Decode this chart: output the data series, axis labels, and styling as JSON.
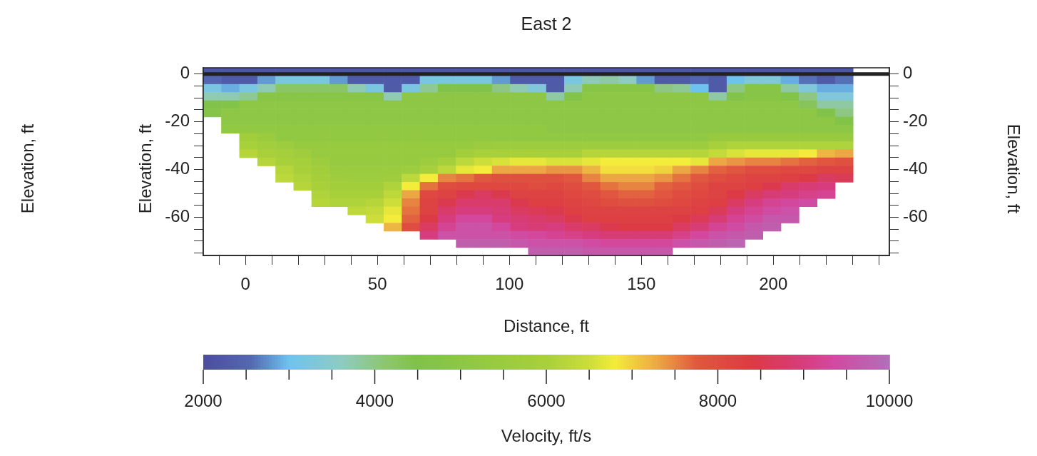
{
  "chart_data": {
    "type": "heatmap",
    "title": "East 2",
    "xlabel": "Distance, ft",
    "ylabel": "Elevation, ft",
    "y2label": "Elevation, ft",
    "clabel": "Velocity, ft/s",
    "annotations": [
      "Elevation, ft"
    ],
    "x": [
      -12.6,
      -5.8,
      1.1,
      7.9,
      14.8,
      21.6,
      28.4,
      35.3,
      42.1,
      49.0,
      55.8,
      62.6,
      69.5,
      76.3,
      83.2,
      90.0,
      96.8,
      103.7,
      110.5,
      117.4,
      124.2,
      131.0,
      137.9,
      144.7,
      151.6,
      158.4,
      165.2,
      172.1,
      178.9,
      185.8,
      192.6,
      199.4,
      206.3,
      213.1,
      220.0,
      226.8
    ],
    "cells": [
      [
        2200,
        2200,
        2200,
        2200,
        2200,
        2200,
        2200,
        2200,
        2200,
        2200,
        2200,
        2200,
        2200,
        2200,
        2200,
        2200,
        2200,
        2200,
        2200,
        2200,
        2200,
        2200,
        2200,
        2200,
        2200,
        2200,
        2200,
        2200,
        2200,
        2200,
        2200,
        2200,
        2200,
        2200,
        2200,
        2200
      ],
      [
        2500,
        2300,
        2300,
        2800,
        3200,
        3200,
        3200,
        2800,
        2300,
        2300,
        2300,
        2300,
        3200,
        3200,
        3200,
        3200,
        2800,
        2300,
        2300,
        2300,
        3200,
        3700,
        3800,
        3600,
        2800,
        2300,
        2300,
        2500,
        2300,
        3000,
        3300,
        3300,
        2900,
        2600,
        2300,
        2600
      ],
      [
        3200,
        2900,
        3200,
        3700,
        4200,
        4200,
        4200,
        4200,
        3700,
        3200,
        2300,
        3200,
        3900,
        4500,
        4500,
        4500,
        4000,
        3700,
        3300,
        2300,
        3700,
        4800,
        4800,
        4800,
        4800,
        4000,
        3900,
        3000,
        2300,
        4000,
        4800,
        4800,
        3800,
        3300,
        2900,
        2900
      ],
      [
        3700,
        3700,
        3900,
        4800,
        4800,
        4800,
        4800,
        4800,
        4800,
        4800,
        3700,
        5000,
        5000,
        5000,
        5000,
        5000,
        5000,
        5000,
        5000,
        3800,
        4600,
        5000,
        5000,
        5000,
        5000,
        5000,
        5000,
        5000,
        3800,
        4600,
        4800,
        4800,
        4600,
        4000,
        3300,
        3300
      ],
      [
        4500,
        4600,
        5000,
        5000,
        5000,
        5000,
        5000,
        5000,
        5000,
        5000,
        5000,
        5000,
        5000,
        5000,
        5000,
        5000,
        5000,
        5000,
        5000,
        5000,
        5000,
        5000,
        5000,
        5000,
        5000,
        5000,
        5000,
        5000,
        5000,
        5000,
        5000,
        5000,
        5000,
        4300,
        3800,
        3800
      ],
      [
        4700,
        5000,
        5000,
        5000,
        5000,
        5000,
        5000,
        5000,
        5000,
        5000,
        5000,
        5000,
        5000,
        5000,
        5000,
        5000,
        5000,
        5000,
        5000,
        5000,
        5000,
        5000,
        5000,
        5000,
        5000,
        5000,
        5000,
        5000,
        5000,
        5000,
        5000,
        5000,
        5000,
        5000,
        4500,
        4000
      ],
      [
        null,
        5000,
        5000,
        5000,
        5000,
        5000,
        5000,
        5000,
        5000,
        5000,
        5000,
        5000,
        5000,
        5000,
        5000,
        5000,
        5000,
        5000,
        5000,
        5000,
        5000,
        5000,
        5000,
        5000,
        5000,
        5000,
        5000,
        5000,
        5000,
        5000,
        5000,
        5000,
        5000,
        5000,
        5000,
        4600
      ],
      [
        null,
        5200,
        5200,
        5200,
        5200,
        5200,
        5200,
        5200,
        5200,
        5200,
        5200,
        5200,
        5200,
        5200,
        5200,
        5200,
        5200,
        5200,
        5200,
        5000,
        5000,
        5000,
        5000,
        5000,
        5000,
        5000,
        5000,
        5000,
        5000,
        5000,
        5000,
        5000,
        5000,
        5000,
        5000,
        5000
      ],
      [
        null,
        null,
        5800,
        5500,
        5200,
        5200,
        5200,
        5200,
        5200,
        5200,
        5200,
        5200,
        5200,
        5200,
        5200,
        5200,
        5200,
        5200,
        5200,
        5200,
        5200,
        5200,
        5200,
        5200,
        5200,
        5200,
        5200,
        5200,
        5400,
        5400,
        5400,
        5400,
        5400,
        5400,
        5400,
        5400
      ],
      [
        null,
        null,
        6000,
        5800,
        5600,
        5400,
        5400,
        5400,
        5400,
        5400,
        5400,
        5400,
        5400,
        5400,
        5400,
        5500,
        5600,
        5600,
        5600,
        5600,
        5600,
        5600,
        5600,
        5600,
        5600,
        5600,
        5600,
        5600,
        6000,
        6100,
        6100,
        6100,
        6100,
        6100,
        6100,
        6100
      ],
      [
        null,
        null,
        6200,
        6000,
        5900,
        5700,
        5400,
        5400,
        5400,
        5400,
        5400,
        5400,
        5400,
        5400,
        5800,
        6000,
        6000,
        6000,
        6000,
        6000,
        6000,
        6200,
        6200,
        6200,
        6200,
        6200,
        6200,
        6200,
        6400,
        6600,
        6700,
        6700,
        6700,
        6800,
        7200,
        7300
      ],
      [
        null,
        null,
        null,
        6200,
        6000,
        5900,
        5600,
        5300,
        5300,
        5300,
        5300,
        5300,
        5600,
        5900,
        6300,
        6500,
        6600,
        6700,
        6700,
        6600,
        6600,
        6700,
        6800,
        6800,
        6800,
        6800,
        6800,
        6700,
        7300,
        7400,
        7500,
        7500,
        7600,
        7700,
        7800,
        7900
      ],
      [
        null,
        null,
        null,
        null,
        6200,
        6000,
        5800,
        5500,
        5500,
        5500,
        5500,
        5600,
        6000,
        6300,
        6700,
        6800,
        7300,
        7300,
        7300,
        7400,
        7400,
        7200,
        6900,
        6900,
        6900,
        7000,
        7300,
        7500,
        7700,
        7800,
        8000,
        8000,
        8100,
        8100,
        8200,
        8200
      ],
      [
        null,
        null,
        null,
        null,
        6300,
        6100,
        5900,
        5700,
        5600,
        5600,
        5700,
        6300,
        6800,
        7500,
        7600,
        7800,
        7900,
        7900,
        7900,
        7900,
        7800,
        7500,
        7300,
        7300,
        7300,
        7400,
        7600,
        7800,
        8000,
        8100,
        8200,
        8200,
        8300,
        8400,
        8700,
        8600
      ],
      [
        null,
        null,
        null,
        null,
        null,
        6200,
        6000,
        5800,
        5800,
        5800,
        6100,
        6800,
        7600,
        8000,
        8100,
        8100,
        8100,
        8100,
        8000,
        8100,
        8000,
        7800,
        7600,
        7500,
        7500,
        7700,
        7800,
        8000,
        8200,
        8200,
        8300,
        8500,
        8800,
        8900,
        9000,
        null
      ],
      [
        null,
        null,
        null,
        null,
        null,
        null,
        6100,
        6000,
        6000,
        6000,
        6300,
        7300,
        8100,
        8200,
        8500,
        8700,
        8500,
        8200,
        8200,
        8200,
        8100,
        8000,
        7800,
        7700,
        7700,
        7800,
        8000,
        8100,
        8200,
        8400,
        8700,
        8900,
        9000,
        9100,
        9200,
        null
      ],
      [
        null,
        null,
        null,
        null,
        null,
        null,
        6200,
        6100,
        6100,
        6200,
        6500,
        7500,
        8200,
        8500,
        8800,
        8800,
        8800,
        8500,
        8300,
        8300,
        8200,
        8100,
        8000,
        7900,
        7900,
        8000,
        8100,
        8200,
        8300,
        8700,
        9000,
        9200,
        9300,
        9400,
        null,
        null
      ],
      [
        null,
        null,
        null,
        null,
        null,
        null,
        null,
        null,
        6300,
        6400,
        6700,
        7600,
        8200,
        8800,
        9000,
        9000,
        8900,
        8700,
        8600,
        8500,
        8300,
        8200,
        8200,
        8200,
        8200,
        8200,
        8200,
        8300,
        8600,
        9000,
        9200,
        9400,
        9500,
        null,
        null,
        null
      ],
      [
        null,
        null,
        null,
        null,
        null,
        null,
        null,
        null,
        null,
        6500,
        6800,
        7700,
        8400,
        9000,
        9300,
        9300,
        9000,
        8900,
        8800,
        8700,
        8500,
        8300,
        8300,
        8300,
        8300,
        8300,
        8400,
        8600,
        8900,
        9200,
        9400,
        9600,
        9600,
        null,
        null,
        null
      ],
      [
        null,
        null,
        null,
        null,
        null,
        null,
        null,
        null,
        null,
        null,
        7200,
        8000,
        8700,
        9200,
        9500,
        9500,
        9300,
        9000,
        8900,
        9000,
        8800,
        8700,
        8500,
        8400,
        8400,
        8400,
        8700,
        8900,
        9200,
        9400,
        9600,
        9700,
        null,
        null,
        null,
        null
      ],
      [
        null,
        null,
        null,
        null,
        null,
        null,
        null,
        null,
        null,
        null,
        null,
        null,
        9000,
        9500,
        9500,
        9500,
        9500,
        9400,
        9300,
        9200,
        9100,
        9000,
        8900,
        8900,
        8900,
        8900,
        9100,
        9300,
        9500,
        9600,
        9700,
        null,
        null,
        null,
        null,
        null
      ],
      [
        null,
        null,
        null,
        null,
        null,
        null,
        null,
        null,
        null,
        null,
        null,
        null,
        null,
        null,
        9700,
        9700,
        9700,
        9600,
        9500,
        9500,
        9500,
        9400,
        9300,
        9300,
        9300,
        9300,
        9500,
        9600,
        9700,
        9800,
        null,
        null,
        null,
        null,
        null,
        null
      ],
      [
        null,
        null,
        null,
        null,
        null,
        null,
        null,
        null,
        null,
        null,
        null,
        null,
        null,
        null,
        null,
        null,
        null,
        null,
        9700,
        9700,
        9700,
        9600,
        9600,
        9600,
        9600,
        9600,
        null,
        null,
        null,
        null,
        null,
        null,
        null,
        null,
        null,
        null
      ]
    ],
    "xlim": [
      -16,
      244
    ],
    "xticks": [
      {
        "value": -10,
        "label": null
      },
      0,
      {
        "value": 10,
        "label": null
      },
      {
        "value": 20,
        "label": null
      },
      {
        "value": 30,
        "label": null
      },
      {
        "value": 40,
        "label": null
      },
      50,
      {
        "value": 60,
        "label": null
      },
      {
        "value": 70,
        "label": null
      },
      {
        "value": 80,
        "label": null
      },
      {
        "value": 90,
        "label": null
      },
      100,
      {
        "value": 110,
        "label": null
      },
      {
        "value": 120,
        "label": null
      },
      {
        "value": 130,
        "label": null
      },
      {
        "value": 140,
        "label": null
      },
      150,
      {
        "value": 160,
        "label": null
      },
      {
        "value": 170,
        "label": null
      },
      {
        "value": 180,
        "label": null
      },
      {
        "value": 190,
        "label": null
      },
      200,
      {
        "value": 210,
        "label": null
      },
      {
        "value": 220,
        "label": null
      },
      {
        "value": 230,
        "label": null
      },
      {
        "value": 240,
        "label": null
      }
    ],
    "ylim": [
      -76,
      2.6
    ],
    "yticks": [
      0,
      {
        "value": -5,
        "label": null
      },
      {
        "value": -10,
        "label": null
      },
      {
        "value": -15,
        "label": null
      },
      -20,
      {
        "value": -25,
        "label": null
      },
      {
        "value": -30,
        "label": null
      },
      {
        "value": -35,
        "label": null
      },
      -40,
      {
        "value": -45,
        "label": null
      },
      {
        "value": -50,
        "label": null
      },
      {
        "value": -55,
        "label": null
      },
      -60,
      {
        "value": -65,
        "label": null
      },
      {
        "value": -70,
        "label": null
      },
      {
        "value": -75,
        "label": null
      }
    ],
    "y2lim": [
      -76,
      2.6
    ],
    "y2ticks": [
      0,
      {
        "value": -5,
        "label": null
      },
      {
        "value": -10,
        "label": null
      },
      {
        "value": -15,
        "label": null
      },
      -20,
      {
        "value": -25,
        "label": null
      },
      {
        "value": -30,
        "label": null
      },
      {
        "value": -35,
        "label": null
      },
      -40,
      {
        "value": -45,
        "label": null
      },
      {
        "value": -50,
        "label": null
      },
      {
        "value": -55,
        "label": null
      },
      -60,
      {
        "value": -65,
        "label": null
      },
      {
        "value": -70,
        "label": null
      },
      {
        "value": -75,
        "label": null
      }
    ],
    "clim": [
      2000,
      10000
    ],
    "cticks": [
      2000,
      {
        "value": 2500,
        "label": null
      },
      {
        "value": 3000,
        "label": null
      },
      {
        "value": 3500,
        "label": null
      },
      4000,
      {
        "value": 4500,
        "label": null
      },
      {
        "value": 5000,
        "label": null
      },
      {
        "value": 5500,
        "label": null
      },
      6000,
      {
        "value": 6500,
        "label": null
      },
      {
        "value": 7000,
        "label": null
      },
      {
        "value": 7500,
        "label": null
      },
      8000,
      {
        "value": 8500,
        "label": null
      },
      {
        "value": 9000,
        "label": null
      },
      {
        "value": 9500,
        "label": null
      },
      10000
    ],
    "ref_lines": [
      {
        "axis": "y",
        "value": 0,
        "label": null,
        "color": "#222222"
      }
    ],
    "grid": false,
    "legend": false
  }
}
